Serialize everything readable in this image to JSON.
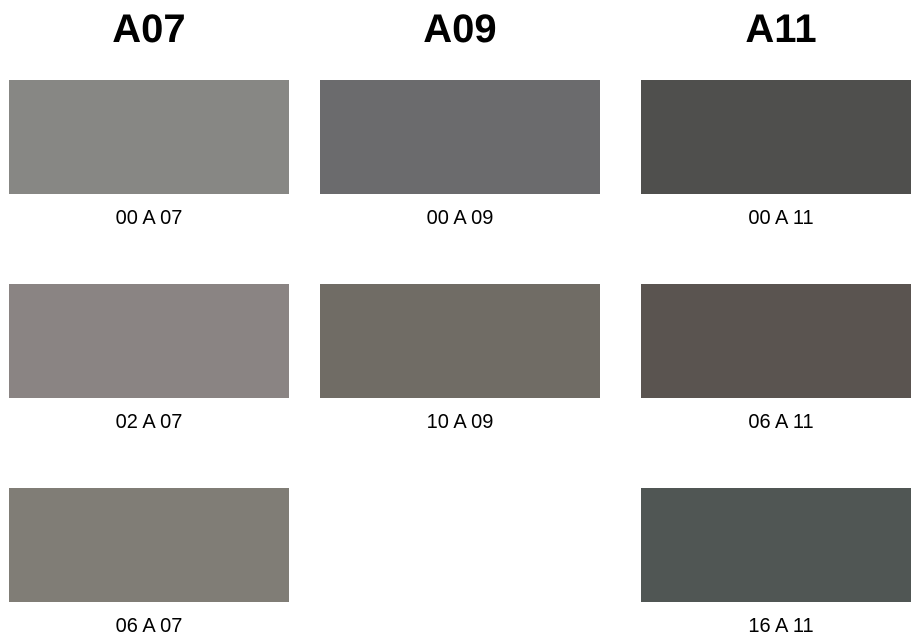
{
  "columns": [
    {
      "title": "A07",
      "swatches": [
        {
          "code": "00 A 07",
          "color": "#878784"
        },
        {
          "code": "02 A 07",
          "color": "#8a8483"
        },
        {
          "code": "06 A 07",
          "color": "#807d76"
        }
      ]
    },
    {
      "title": "A09",
      "swatches": [
        {
          "code": "00 A 09",
          "color": "#6b6b6d"
        },
        {
          "code": "10 A 09",
          "color": "#706c65"
        }
      ]
    },
    {
      "title": "A11",
      "swatches": [
        {
          "code": "00 A 11",
          "color": "#4f4f4d"
        },
        {
          "code": "06 A 11",
          "color": "#5a5450"
        },
        {
          "code": "16 A 11",
          "color": "#505654"
        }
      ]
    }
  ]
}
